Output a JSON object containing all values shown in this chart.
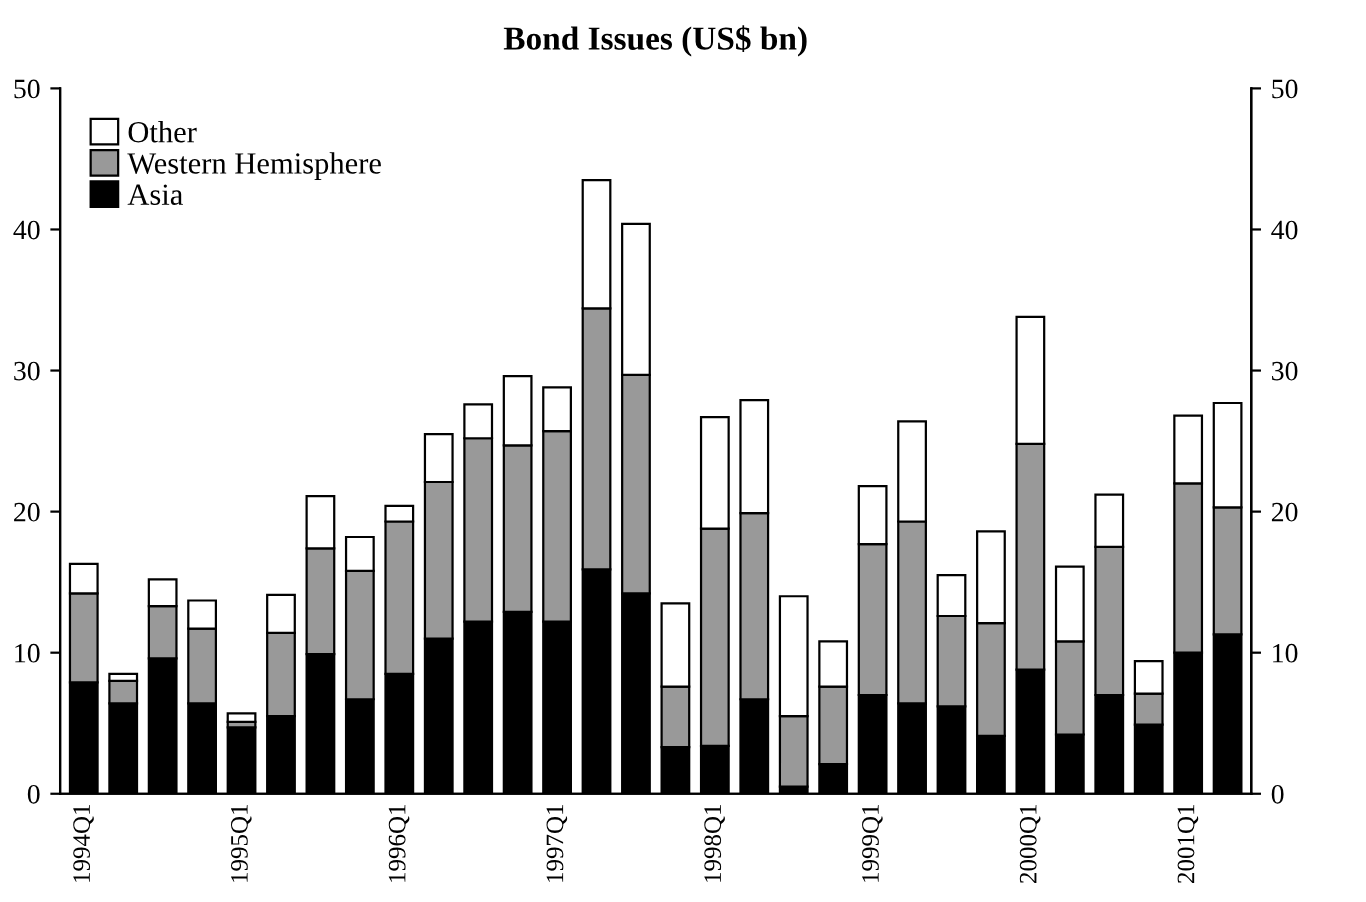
{
  "chart_data": {
    "type": "bar",
    "title": "Bond Issues (US$ bn)",
    "stacked": true,
    "categories": [
      "1994Q1",
      null,
      null,
      null,
      "1995Q1",
      null,
      null,
      null,
      "1996Q1",
      null,
      null,
      null,
      "1997Q1",
      null,
      null,
      null,
      "1998Q1",
      null,
      null,
      null,
      "1999Q1",
      null,
      null,
      null,
      "2000Q1",
      null,
      null,
      null,
      "2001Q1",
      null
    ],
    "series": [
      {
        "name": "Asia",
        "color": "#000000",
        "values": [
          7.9,
          6.4,
          9.6,
          6.4,
          4.7,
          5.5,
          9.9,
          6.7,
          8.5,
          11.0,
          12.2,
          12.9,
          12.2,
          15.9,
          14.2,
          3.3,
          3.4,
          6.7,
          0.5,
          2.1,
          7.0,
          6.4,
          6.2,
          4.1,
          8.8,
          4.2,
          7.0,
          4.9,
          10.0,
          11.3
        ]
      },
      {
        "name": "Western Hemisphere",
        "color": "#999999",
        "values": [
          6.3,
          1.6,
          3.7,
          5.3,
          0.4,
          5.9,
          7.5,
          9.1,
          10.8,
          11.1,
          13.0,
          11.8,
          13.5,
          18.5,
          15.5,
          4.3,
          15.4,
          13.2,
          5.0,
          5.5,
          10.7,
          12.9,
          6.4,
          8.0,
          16.0,
          6.6,
          10.5,
          2.2,
          12.0,
          9.0
        ]
      },
      {
        "name": "Other",
        "color": "#ffffff",
        "values": [
          2.1,
          0.5,
          1.9,
          2.0,
          0.6,
          2.7,
          3.7,
          2.4,
          1.1,
          3.4,
          2.4,
          4.9,
          3.1,
          9.1,
          10.7,
          5.9,
          7.9,
          8.0,
          8.5,
          3.2,
          4.1,
          7.1,
          2.9,
          6.5,
          9.0,
          5.3,
          3.7,
          2.3,
          4.8,
          7.4
        ]
      }
    ],
    "ylim": [
      0,
      50
    ],
    "yticks": [
      0,
      10,
      20,
      30,
      40,
      50
    ],
    "y2lim": [
      0,
      50
    ],
    "y2ticks": [
      0,
      10,
      20,
      30,
      40,
      50
    ],
    "legend": "top left",
    "grid": false
  }
}
